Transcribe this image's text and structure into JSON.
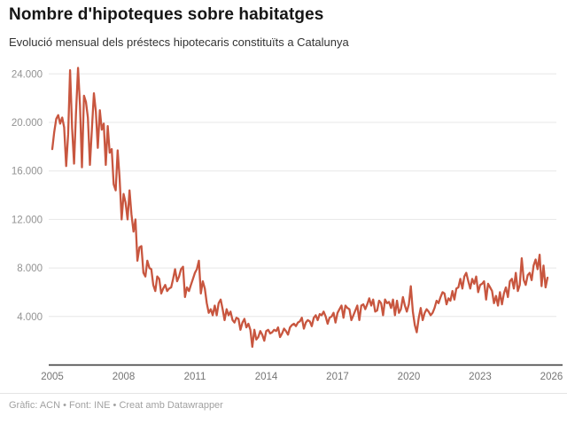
{
  "header": {
    "title": "Nombre d'hipoteques sobre habitatges",
    "subtitle": "Evolució mensual dels préstecs hipotecaris constituïts a Catalunya"
  },
  "footer": {
    "text": "Gràfic: ACN • Font: INE • Creat amb Datawrapper"
  },
  "chart_data": {
    "type": "line",
    "title": "Nombre d'hipoteques sobre habitatges",
    "subtitle": "Evolució mensual dels préstecs hipotecaris constituïts a Catalunya",
    "source": "Gràfic: ACN • Font: INE • Creat amb Datawrapper",
    "unit": "hipoteques constituïdes per mes",
    "frequency": "monthly",
    "x_start": "2005-01",
    "x_end": "2025-11",
    "ylim": [
      0,
      24000
    ],
    "grid": true,
    "legend_position": "none",
    "y_axis": {
      "max": 24000,
      "ticks": [
        {
          "value": 24000,
          "label": "24.000"
        },
        {
          "value": 20000,
          "label": "20.000"
        },
        {
          "value": 16000,
          "label": "16.000"
        },
        {
          "value": 12000,
          "label": "12.000"
        },
        {
          "value": 8000,
          "label": "8.000"
        },
        {
          "value": 4000,
          "label": "4.000"
        }
      ]
    },
    "x_axis": {
      "ticks": [
        {
          "year": 2005,
          "label": "2005"
        },
        {
          "year": 2008,
          "label": "2008"
        },
        {
          "year": 2011,
          "label": "2011"
        },
        {
          "year": 2014,
          "label": "2014"
        },
        {
          "year": 2017,
          "label": "2017"
        },
        {
          "year": 2020,
          "label": "2020"
        },
        {
          "year": 2023,
          "label": "2023"
        },
        {
          "year": 2026,
          "label": "2026"
        }
      ]
    },
    "colors": {
      "line": "#c8563f",
      "grid": "#e7e7e7",
      "axis": "#333333",
      "y_label": "#929292",
      "x_label": "#757575"
    },
    "values": [
      17800,
      19200,
      20300,
      20600,
      19900,
      20400,
      19600,
      16400,
      19000,
      24300,
      19500,
      16600,
      20800,
      24500,
      21400,
      16300,
      22200,
      21700,
      20400,
      16500,
      19400,
      22400,
      20900,
      17900,
      21000,
      19400,
      19900,
      16500,
      19700,
      17500,
      17800,
      14900,
      14400,
      17700,
      15400,
      12000,
      14100,
      13400,
      12000,
      14400,
      12400,
      11000,
      12000,
      8600,
      9700,
      9800,
      7600,
      7300,
      8600,
      8000,
      7900,
      6600,
      6100,
      7300,
      7100,
      5900,
      6300,
      6600,
      6100,
      6300,
      6400,
      7100,
      7900,
      6900,
      7300,
      7900,
      8100,
      5600,
      6400,
      6100,
      6600,
      7100,
      7600,
      7900,
      8600,
      5900,
      6900,
      6300,
      5100,
      4300,
      4600,
      4100,
      4900,
      4100,
      5100,
      5400,
      4600,
      3700,
      4600,
      4100,
      4400,
      3700,
      3500,
      3900,
      3800,
      2900,
      3500,
      3800,
      3100,
      3400,
      2900,
      1500,
      2900,
      2100,
      2300,
      2800,
      2500,
      2000,
      2800,
      2900,
      2600,
      2700,
      2900,
      2800,
      3100,
      2300,
      2600,
      3000,
      2800,
      2500,
      3100,
      3300,
      3400,
      3200,
      3500,
      3600,
      3900,
      3000,
      3500,
      3700,
      3600,
      3200,
      3900,
      4100,
      3700,
      4200,
      4100,
      4400,
      4000,
      3400,
      3900,
      4000,
      4300,
      3500,
      4300,
      4600,
      4900,
      3900,
      4900,
      4700,
      4600,
      3700,
      4100,
      4500,
      4900,
      3700,
      4900,
      5000,
      4600,
      5000,
      5500,
      4900,
      5400,
      4400,
      4500,
      5300,
      5100,
      4100,
      5400,
      5100,
      5200,
      4700,
      5400,
      4100,
      5300,
      4300,
      4600,
      5600,
      4900,
      4400,
      5000,
      6500,
      4400,
      3300,
      2700,
      3900,
      4700,
      3700,
      4300,
      4600,
      4400,
      4100,
      4300,
      4700,
      5300,
      5100,
      5600,
      6000,
      5900,
      5000,
      5500,
      5300,
      6100,
      5400,
      6300,
      6400,
      7100,
      6300,
      7300,
      7600,
      6900,
      6300,
      7100,
      6700,
      7300,
      6000,
      6600,
      6700,
      6900,
      5400,
      6700,
      6400,
      6100,
      5100,
      5700,
      4900,
      6000,
      5000,
      5900,
      6400,
      5600,
      6900,
      7100,
      6300,
      7600,
      6100,
      6600,
      8800,
      7000,
      6600,
      7400,
      7600,
      7000,
      8200,
      8700,
      7900,
      9100,
      6500,
      8200,
      6400,
      7200
    ]
  }
}
